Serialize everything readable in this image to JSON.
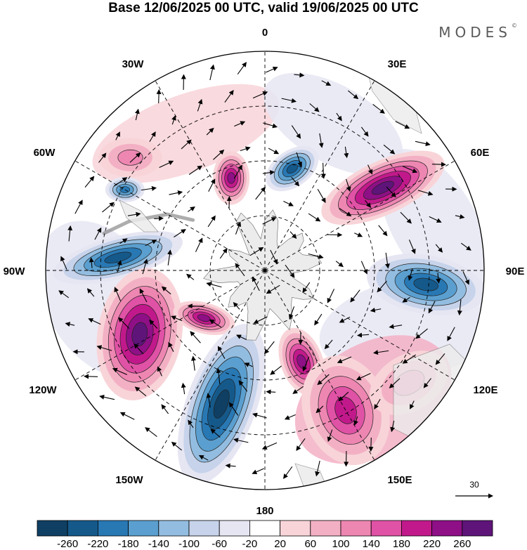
{
  "header": {
    "title": "Base 12/06/2025 00 UTC, valid 19/06/2025 00 UTC",
    "brand": "MODES",
    "brand_mark": "©"
  },
  "map": {
    "projection": "south-polar-stereographic",
    "longitude_labels": [
      "0",
      "30E",
      "60E",
      "90E",
      "120E",
      "150E",
      "180",
      "150W",
      "120W",
      "90W",
      "60W",
      "30W"
    ],
    "vector_reference": {
      "label": "30"
    },
    "colors": {
      "land": "#ececec",
      "graticule": "#000000",
      "arrow": "#000000"
    },
    "anomaly_centers": [
      {
        "name": "negative",
        "lon": 15,
        "value": -200
      },
      {
        "name": "positive",
        "lon": 55,
        "value": 260
      },
      {
        "name": "positive",
        "lon": 340,
        "value": 230
      },
      {
        "name": "negative",
        "lon": 95,
        "value": -200
      },
      {
        "name": "negative",
        "lon": 275,
        "value": -220
      },
      {
        "name": "positive",
        "lon": 243,
        "value": 240
      },
      {
        "name": "positive",
        "lon": 232,
        "value": 200
      },
      {
        "name": "negative",
        "lon": 198,
        "value": -260
      },
      {
        "name": "positive",
        "lon": 158,
        "value": 200
      },
      {
        "name": "positive",
        "lon": 150,
        "value": 160
      },
      {
        "name": "negative",
        "lon": 300,
        "value": -180
      },
      {
        "name": "positive",
        "lon": 310,
        "value": 80
      },
      {
        "name": "positive",
        "lon": 128,
        "value": 80
      }
    ]
  },
  "colorbar": {
    "colors": [
      "#0f3f63",
      "#15598a",
      "#2878b4",
      "#5a9fcf",
      "#93bde0",
      "#c6d3ea",
      "#e6e6f3",
      "#ffffff",
      "#f8d4d8",
      "#f3b0c4",
      "#ee86b2",
      "#e052a5",
      "#c1198b",
      "#8e0f86",
      "#5e1479"
    ],
    "tick_labels": [
      "-260",
      "-220",
      "-180",
      "-140",
      "-100",
      "-60",
      "-20",
      "20",
      "60",
      "100",
      "140",
      "180",
      "220",
      "260"
    ]
  }
}
